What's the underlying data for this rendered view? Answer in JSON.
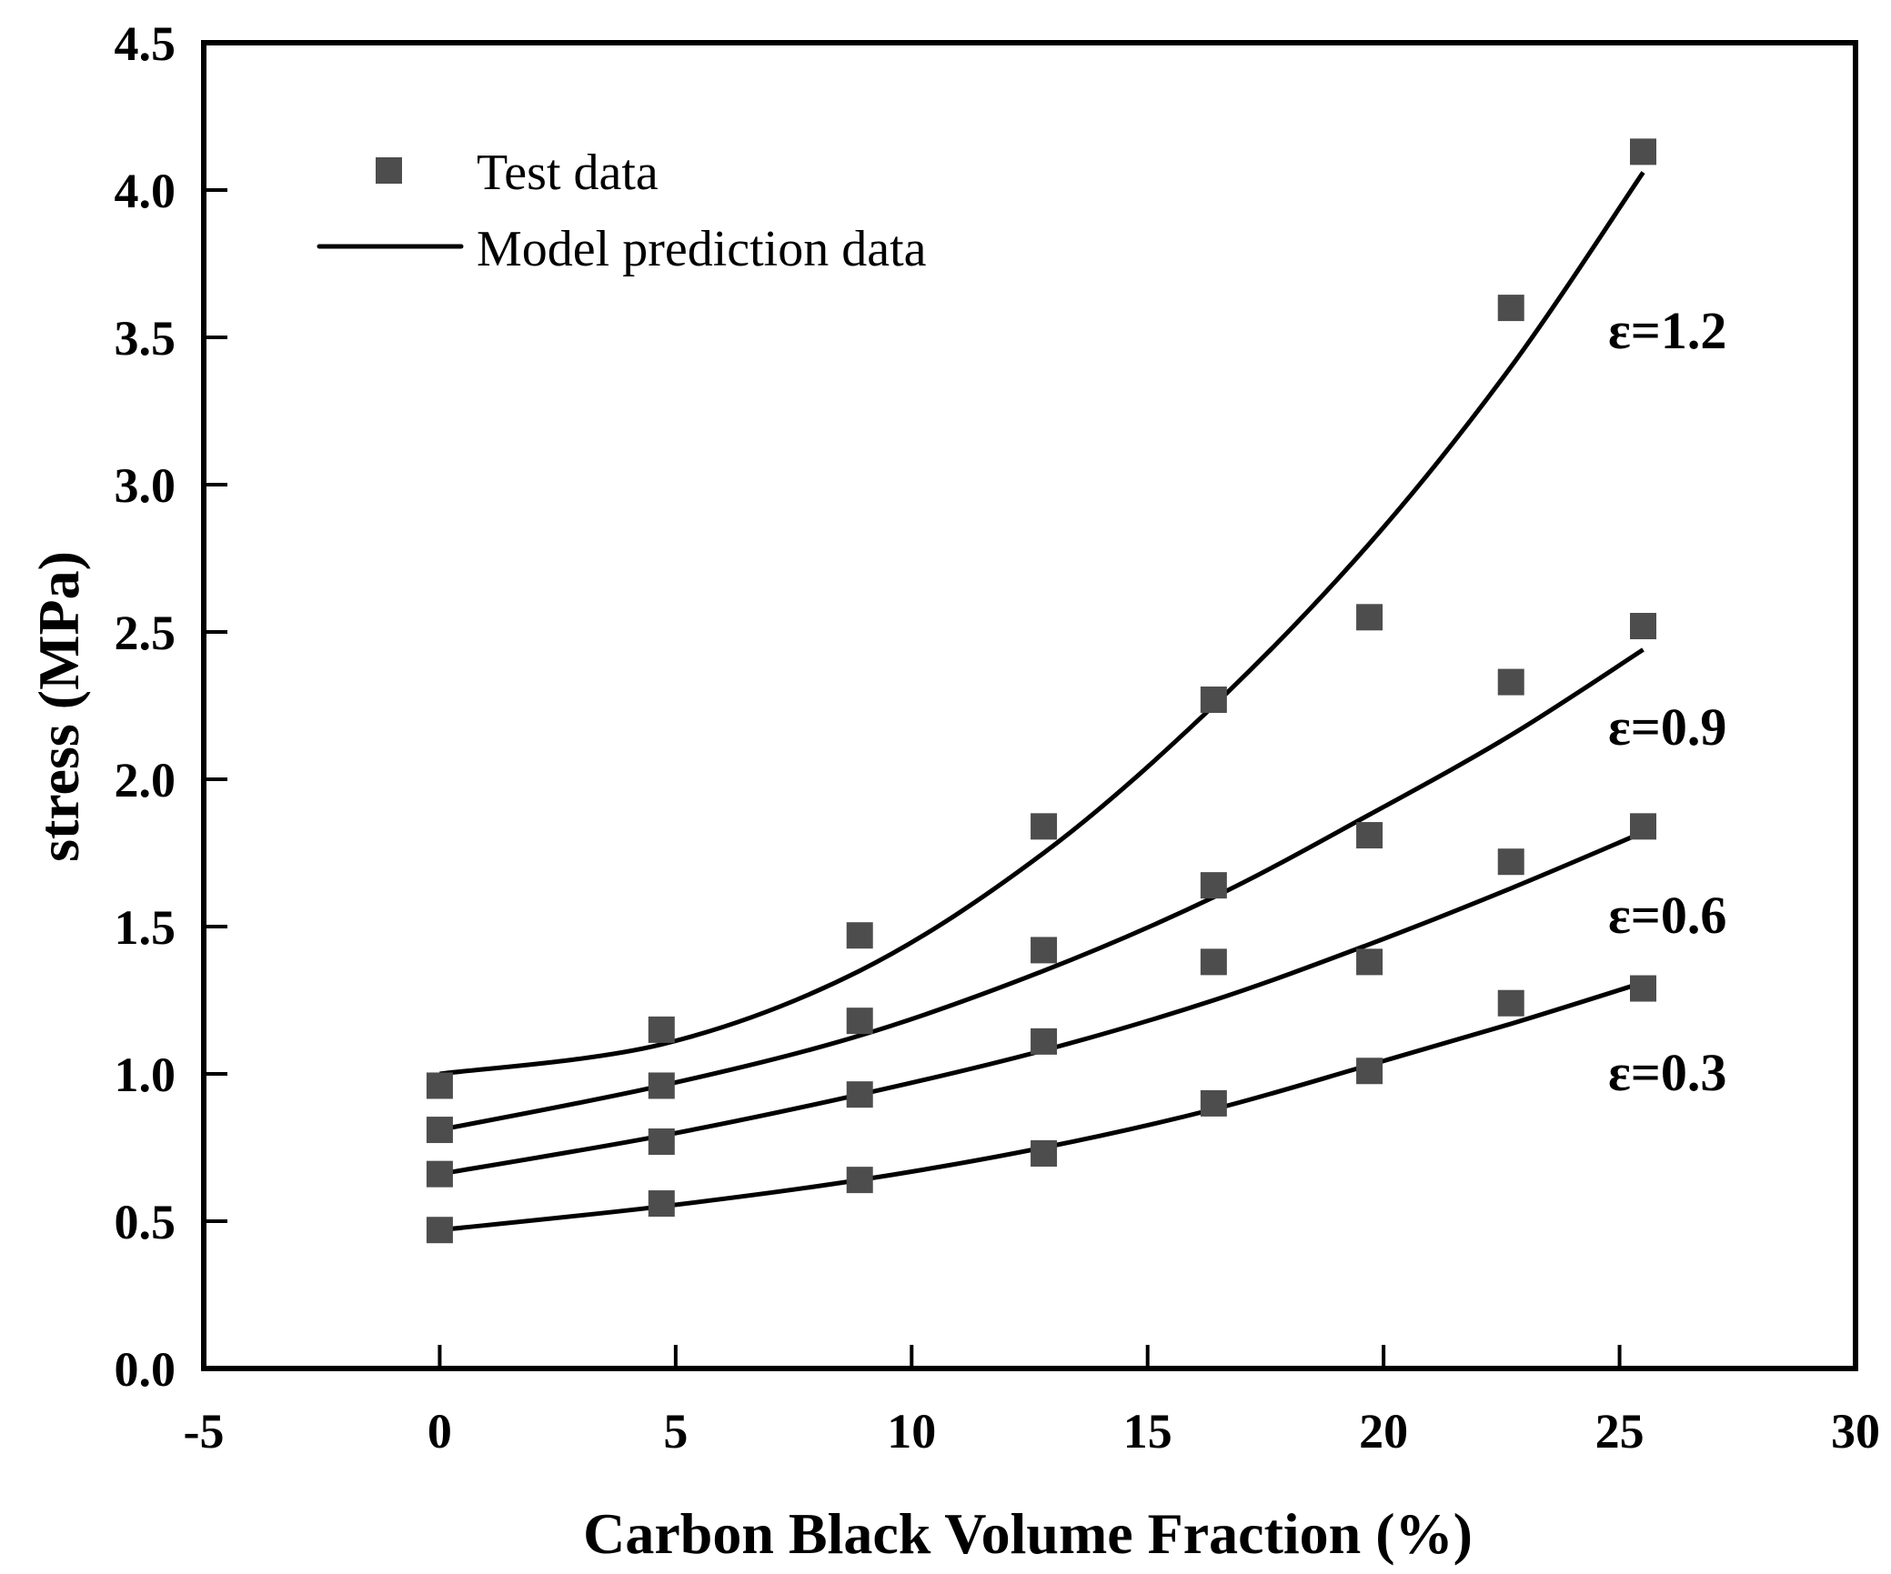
{
  "chart_data": {
    "type": "scatter",
    "title": "",
    "xlabel": "Carbon Black Volume Fraction (%)",
    "ylabel": "stress (MPa)",
    "xlim": [
      -5,
      30
    ],
    "ylim": [
      0,
      4.5
    ],
    "xticks": [
      "-5",
      "0",
      "5",
      "10",
      "15",
      "20",
      "25",
      "30"
    ],
    "yticks": [
      "0.0",
      "0.5",
      "1.0",
      "1.5",
      "2.0",
      "2.5",
      "3.0",
      "3.5",
      "4.0",
      "4.5"
    ],
    "grid": false,
    "legend": {
      "placement": "top-left",
      "entries": [
        "Test data",
        "Model prediction data"
      ]
    },
    "marker_color": "#4d4d4d",
    "line_color": "#000000",
    "x": [
      0,
      4.7,
      8.9,
      12.8,
      16.4,
      19.7,
      22.7,
      25.5
    ],
    "series": [
      {
        "name": "ε=1.2",
        "test": [
          0.96,
          1.15,
          1.47,
          1.84,
          2.27,
          2.55,
          3.6,
          4.13
        ],
        "model": [
          1.0,
          1.1,
          1.35,
          1.75,
          2.25,
          2.8,
          3.4,
          4.06
        ]
      },
      {
        "name": "ε=0.9",
        "test": [
          0.81,
          0.96,
          1.18,
          1.42,
          1.64,
          1.81,
          2.33,
          2.52
        ],
        "model": [
          0.81,
          0.96,
          1.13,
          1.35,
          1.6,
          1.88,
          2.15,
          2.44
        ]
      },
      {
        "name": "ε=0.6",
        "test": [
          0.66,
          0.77,
          0.93,
          1.11,
          1.38,
          1.38,
          1.72,
          1.84
        ],
        "model": [
          0.66,
          0.79,
          0.93,
          1.08,
          1.25,
          1.44,
          1.63,
          1.82
        ]
      },
      {
        "name": "ε=0.3",
        "test": [
          0.47,
          0.56,
          0.64,
          0.73,
          0.9,
          1.01,
          1.24,
          1.29
        ],
        "model": [
          0.47,
          0.55,
          0.64,
          0.75,
          0.88,
          1.03,
          1.17,
          1.31
        ]
      }
    ]
  }
}
